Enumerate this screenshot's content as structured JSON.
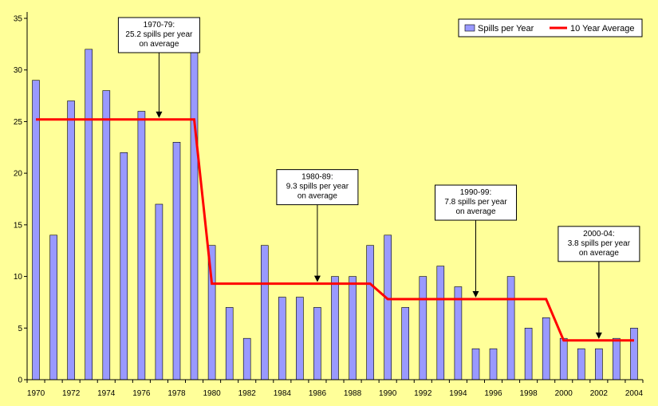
{
  "chart_data": {
    "type": "bar",
    "title": "",
    "xlabel": "",
    "ylabel": "",
    "ylim": [
      0,
      35
    ],
    "y_ticks": [
      "0",
      "5",
      "10",
      "15",
      "20",
      "25",
      "30",
      "35"
    ],
    "x_tick_labels": [
      "1970",
      "1972",
      "1974",
      "1976",
      "1978",
      "1980",
      "1982",
      "1984",
      "1986",
      "1988",
      "1990",
      "1992",
      "1994",
      "1996",
      "1998",
      "2000",
      "2002",
      "2004"
    ],
    "categories": [
      "1970",
      "1971",
      "1972",
      "1973",
      "1974",
      "1975",
      "1976",
      "1977",
      "1978",
      "1979",
      "1980",
      "1981",
      "1982",
      "1983",
      "1984",
      "1985",
      "1986",
      "1987",
      "1988",
      "1989",
      "1990",
      "1991",
      "1992",
      "1993",
      "1994",
      "1995",
      "1996",
      "1997",
      "1998",
      "1999",
      "2000",
      "2001",
      "2002",
      "2003",
      "2004"
    ],
    "series": [
      {
        "name": "Spills per Year",
        "type": "bar",
        "color": "#9999ff",
        "values": [
          29,
          14,
          27,
          32,
          28,
          22,
          26,
          17,
          23,
          34,
          13,
          7,
          4,
          13,
          8,
          8,
          7,
          10,
          10,
          13,
          14,
          7,
          10,
          11,
          9,
          3,
          3,
          10,
          5,
          6,
          4,
          3,
          3,
          4,
          5
        ]
      },
      {
        "name": "10 Year Average",
        "type": "step-line",
        "color": "#ff0000",
        "segments": [
          {
            "from": "1970",
            "to": "1979",
            "value": 25.2
          },
          {
            "from": "1980",
            "to": "1989",
            "value": 9.3
          },
          {
            "from": "1990",
            "to": "1999",
            "value": 7.8
          },
          {
            "from": "2000",
            "to": "2004",
            "value": 3.8
          }
        ]
      }
    ],
    "legend": {
      "placement": "top-right"
    },
    "annotations": [
      {
        "lines": [
          "1970-79:",
          "25.2 spills per year",
          "on average"
        ],
        "x": "1977",
        "y": 25.2
      },
      {
        "lines": [
          "1980-89:",
          "9.3 spills per year",
          "on average"
        ],
        "x": "1986",
        "y": 9.3
      },
      {
        "lines": [
          "1990-99:",
          "7.8 spills per year",
          "on average"
        ],
        "x": "1995",
        "y": 7.8
      },
      {
        "lines": [
          "2000-04:",
          "3.8 spills per year",
          "on average"
        ],
        "x": "2002",
        "y": 3.8
      }
    ],
    "colors": {
      "plot_background": "#ffff99",
      "bar": "#9999ff",
      "average_line": "#ff0000"
    }
  }
}
